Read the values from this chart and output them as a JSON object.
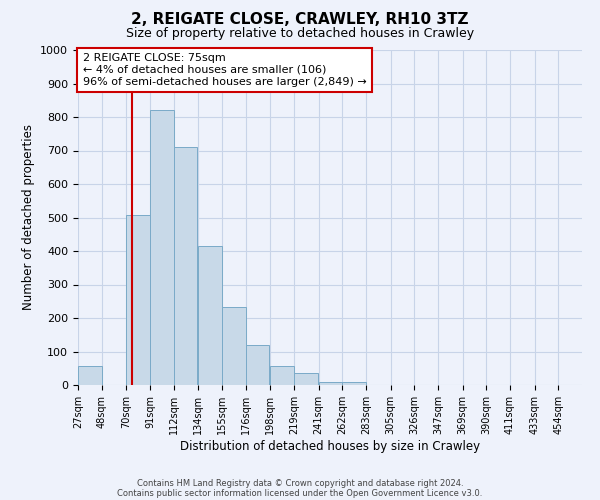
{
  "title": "2, REIGATE CLOSE, CRAWLEY, RH10 3TZ",
  "subtitle": "Size of property relative to detached houses in Crawley",
  "xlabel": "Distribution of detached houses by size in Crawley",
  "ylabel": "Number of detached properties",
  "bar_left_edges": [
    27,
    48,
    70,
    91,
    112,
    134,
    155,
    176,
    198,
    219,
    241,
    262,
    283,
    305,
    326,
    347,
    369,
    390,
    411,
    433
  ],
  "bar_heights": [
    57,
    0,
    507,
    820,
    710,
    415,
    232,
    118,
    57,
    35,
    10,
    10,
    0,
    0,
    0,
    0,
    0,
    0,
    0,
    0
  ],
  "bin_width": 21,
  "bar_color": "#c8d9e8",
  "bar_edgecolor": "#7aaac8",
  "tick_labels": [
    "27sqm",
    "48sqm",
    "70sqm",
    "91sqm",
    "112sqm",
    "134sqm",
    "155sqm",
    "176sqm",
    "198sqm",
    "219sqm",
    "241sqm",
    "262sqm",
    "283sqm",
    "305sqm",
    "326sqm",
    "347sqm",
    "369sqm",
    "390sqm",
    "411sqm",
    "433sqm",
    "454sqm"
  ],
  "tick_positions": [
    27,
    48,
    70,
    91,
    112,
    134,
    155,
    176,
    198,
    219,
    241,
    262,
    283,
    305,
    326,
    347,
    369,
    390,
    411,
    433,
    454
  ],
  "ylim": [
    0,
    1000
  ],
  "yticks": [
    0,
    100,
    200,
    300,
    400,
    500,
    600,
    700,
    800,
    900,
    1000
  ],
  "xlim_left": 27,
  "xlim_right": 475,
  "vline_x": 75,
  "vline_color": "#cc0000",
  "annotation_title": "2 REIGATE CLOSE: 75sqm",
  "annotation_line1": "← 4% of detached houses are smaller (106)",
  "annotation_line2": "96% of semi-detached houses are larger (2,849) →",
  "annotation_box_facecolor": "#ffffff",
  "annotation_box_edgecolor": "#cc0000",
  "footer_line1": "Contains HM Land Registry data © Crown copyright and database right 2024.",
  "footer_line2": "Contains public sector information licensed under the Open Government Licence v3.0.",
  "grid_color": "#c8d4e8",
  "background_color": "#eef2fb"
}
